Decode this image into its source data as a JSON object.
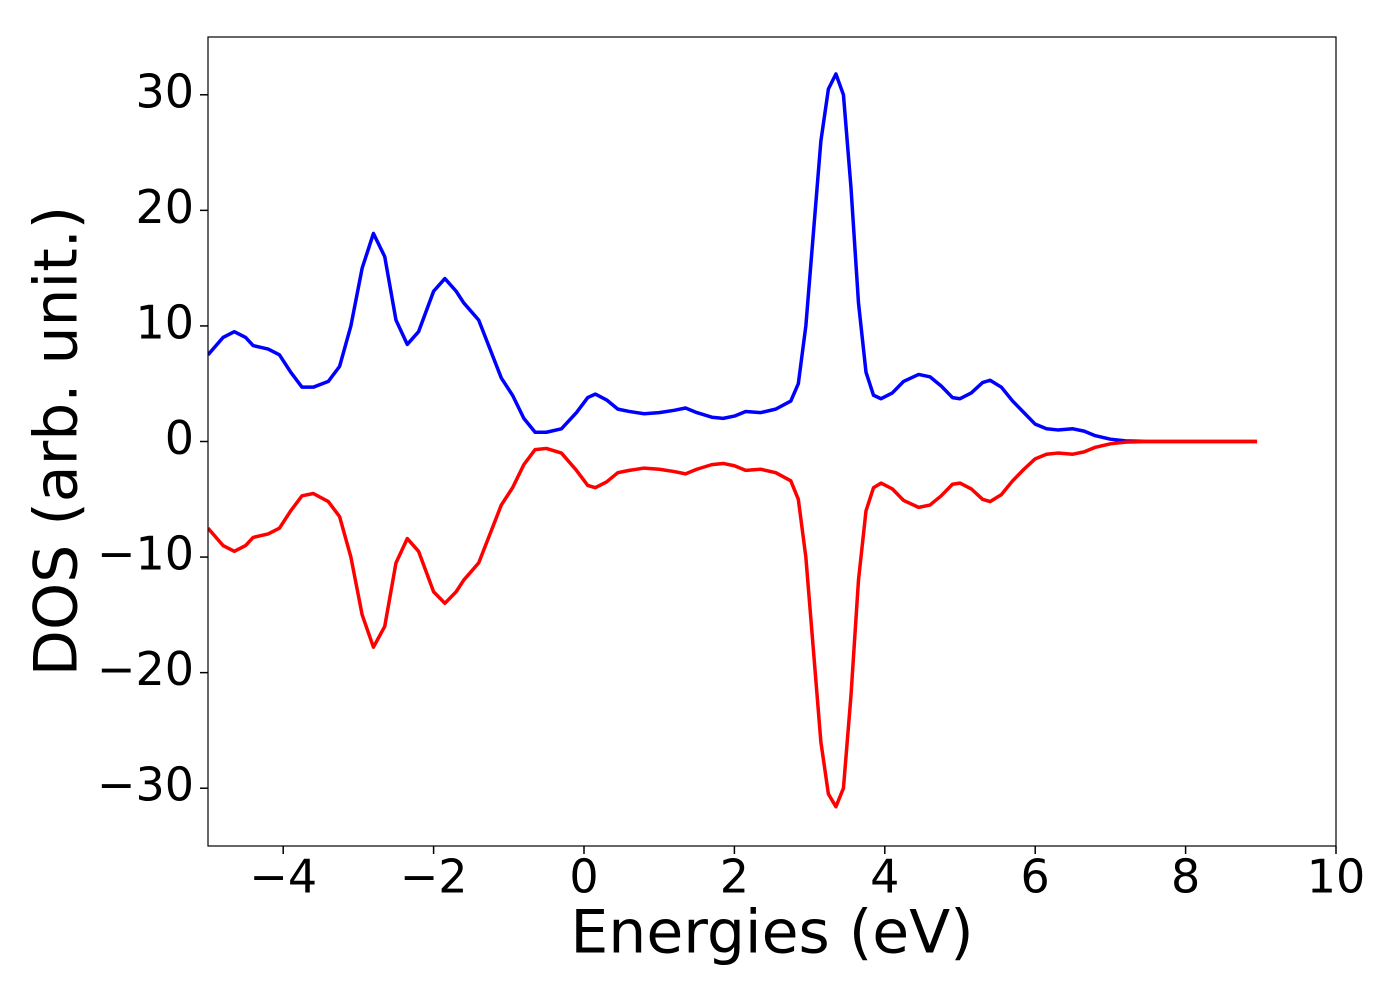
{
  "chart_data": {
    "type": "line",
    "xlabel": "Energies (eV)",
    "ylabel": "DOS (arb. unit.)",
    "x": [
      -5.0,
      -4.8,
      -4.65,
      -4.5,
      -4.4,
      -4.2,
      -4.05,
      -3.9,
      -3.75,
      -3.6,
      -3.4,
      -3.25,
      -3.1,
      -2.95,
      -2.8,
      -2.65,
      -2.5,
      -2.35,
      -2.2,
      -2.0,
      -1.85,
      -1.7,
      -1.6,
      -1.4,
      -1.25,
      -1.1,
      -0.95,
      -0.8,
      -0.65,
      -0.5,
      -0.3,
      -0.1,
      0.05,
      0.15,
      0.3,
      0.45,
      0.6,
      0.8,
      1.0,
      1.2,
      1.35,
      1.5,
      1.7,
      1.85,
      2.0,
      2.15,
      2.35,
      2.55,
      2.75,
      2.85,
      2.95,
      3.05,
      3.15,
      3.25,
      3.35,
      3.45,
      3.55,
      3.65,
      3.75,
      3.85,
      3.95,
      4.1,
      4.25,
      4.45,
      4.6,
      4.75,
      4.9,
      5.0,
      5.15,
      5.3,
      5.4,
      5.55,
      5.7,
      5.85,
      6.0,
      6.15,
      6.3,
      6.5,
      6.65,
      6.8,
      7.0,
      7.2,
      7.5,
      8.0,
      8.5,
      8.95
    ],
    "series": [
      {
        "color": "#0000ff",
        "values": [
          7.5,
          9.0,
          9.5,
          9.0,
          8.3,
          8.0,
          7.5,
          6.0,
          4.7,
          4.7,
          5.2,
          6.5,
          10.0,
          15.0,
          18.0,
          16.0,
          10.5,
          8.4,
          9.5,
          13.0,
          14.1,
          13.0,
          12.0,
          10.5,
          8.0,
          5.5,
          4.0,
          2.0,
          0.8,
          0.8,
          1.1,
          2.5,
          3.8,
          4.1,
          3.6,
          2.8,
          2.6,
          2.4,
          2.5,
          2.7,
          2.9,
          2.5,
          2.1,
          2.0,
          2.2,
          2.6,
          2.5,
          2.8,
          3.5,
          5.0,
          10.0,
          18.0,
          26.0,
          30.5,
          31.8,
          30.0,
          22.0,
          12.0,
          6.0,
          4.0,
          3.7,
          4.2,
          5.2,
          5.8,
          5.6,
          4.8,
          3.8,
          3.7,
          4.2,
          5.1,
          5.3,
          4.7,
          3.5,
          2.5,
          1.5,
          1.1,
          1.0,
          1.1,
          0.9,
          0.5,
          0.2,
          0.05,
          0,
          0,
          0,
          0
        ]
      },
      {
        "color": "#ff0000",
        "values": [
          -7.5,
          -9.0,
          -9.5,
          -9.0,
          -8.3,
          -8.0,
          -7.5,
          -6.0,
          -4.7,
          -4.5,
          -5.2,
          -6.5,
          -10.0,
          -15.0,
          -17.8,
          -16.0,
          -10.5,
          -8.4,
          -9.5,
          -13.0,
          -14.0,
          -13.0,
          -12.0,
          -10.5,
          -8.0,
          -5.5,
          -4.0,
          -2.0,
          -0.7,
          -0.6,
          -1.0,
          -2.5,
          -3.8,
          -4.0,
          -3.5,
          -2.7,
          -2.5,
          -2.3,
          -2.4,
          -2.6,
          -2.8,
          -2.4,
          -2.0,
          -1.9,
          -2.1,
          -2.5,
          -2.4,
          -2.7,
          -3.4,
          -5.0,
          -10.0,
          -18.0,
          -26.0,
          -30.5,
          -31.6,
          -30.0,
          -22.0,
          -12.0,
          -6.0,
          -4.0,
          -3.6,
          -4.1,
          -5.1,
          -5.7,
          -5.5,
          -4.7,
          -3.7,
          -3.6,
          -4.1,
          -5.0,
          -5.2,
          -4.6,
          -3.4,
          -2.4,
          -1.5,
          -1.1,
          -1.0,
          -1.1,
          -0.9,
          -0.5,
          -0.2,
          -0.05,
          0,
          0,
          0,
          0
        ]
      }
    ],
    "xlim": [
      -5,
      10
    ],
    "xticks": [
      {
        "value": -4,
        "label": "−4"
      },
      {
        "value": -2,
        "label": "−2"
      },
      0,
      2,
      4,
      6,
      8,
      10
    ],
    "ylim": [
      -35,
      35
    ],
    "yticks": [
      {
        "value": -30,
        "label": "−30"
      },
      {
        "value": -20,
        "label": "−20"
      },
      {
        "value": -10,
        "label": "−10"
      },
      0,
      10,
      20,
      30
    ]
  }
}
